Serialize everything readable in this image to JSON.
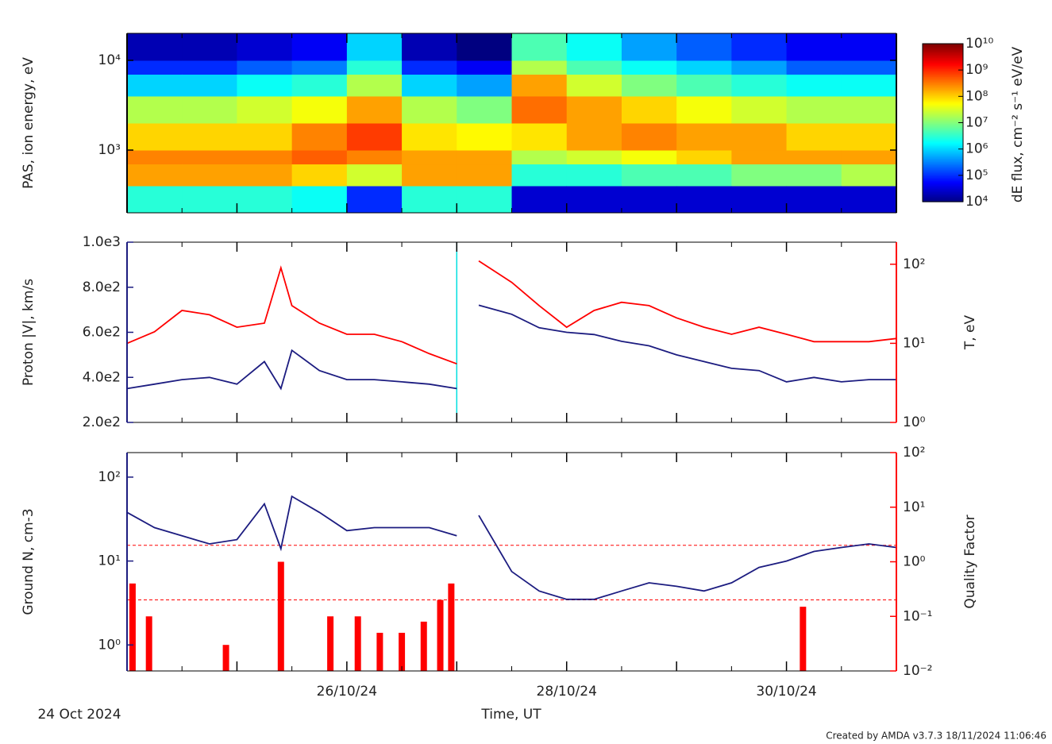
{
  "date_label": "24 Oct 2024",
  "x_label": "Time, UT",
  "credit": "Created by AMDA v3.7.3 18/11/2024 11:06:46",
  "chart_data": [
    {
      "type": "heatmap",
      "ylabel": "PAS, ion energy, eV",
      "xlim": [
        24,
        31
      ],
      "xticks": [
        25,
        26,
        27,
        28,
        29,
        30
      ],
      "xticks_minor": [
        24.5,
        25.5,
        26.5,
        27.5,
        28.5,
        29.5,
        30.5
      ],
      "ylim": [
        200,
        20000
      ],
      "ylog": true,
      "yticks": [
        {
          "value": 1000,
          "label": "10³"
        },
        {
          "value": 10000,
          "label": "10⁴"
        }
      ],
      "x_bins": [
        24,
        24.5,
        25,
        25.5,
        26,
        26.5,
        27,
        27.5,
        28,
        28.5,
        29,
        29.5,
        30,
        30.5,
        31
      ],
      "y_bins": [
        200,
        400,
        700,
        1000,
        2000,
        4000,
        7000,
        10000,
        20000
      ],
      "values": [
        [
          3000000.0,
          200000000.0,
          300000000.0,
          100000000.0,
          20000000.0,
          1000000.0,
          100000.0,
          20000.0
        ],
        [
          3000000.0,
          200000000.0,
          300000000.0,
          100000000.0,
          20000000.0,
          1000000.0,
          100000.0,
          20000.0
        ],
        [
          3000000.0,
          200000000.0,
          300000000.0,
          100000000.0,
          30000000.0,
          2000000.0,
          200000.0,
          30000.0
        ],
        [
          2000000.0,
          100000000.0,
          500000000.0,
          300000000.0,
          50000000.0,
          3000000.0,
          300000.0,
          50000.0
        ],
        [
          100000.0,
          30000000.0,
          300000000.0,
          800000000.0,
          200000000.0,
          20000000.0,
          3000000.0,
          1000000.0
        ],
        [
          3000000.0,
          200000000.0,
          200000000.0,
          80000000.0,
          20000000.0,
          1000000.0,
          100000.0,
          20000.0
        ],
        [
          3000000.0,
          200000000.0,
          200000000.0,
          60000000.0,
          10000000.0,
          500000.0,
          50000.0,
          10000.0
        ],
        [
          30000.0,
          3000000.0,
          20000000.0,
          80000000.0,
          400000000.0,
          200000000.0,
          20000000.0,
          5000000.0
        ],
        [
          30000.0,
          3000000.0,
          30000000.0,
          200000000.0,
          200000000.0,
          30000000.0,
          5000000.0,
          2000000.0
        ],
        [
          30000.0,
          5000000.0,
          50000000.0,
          300000000.0,
          100000000.0,
          10000000.0,
          2000000.0,
          500000.0
        ],
        [
          30000.0,
          5000000.0,
          100000000.0,
          200000000.0,
          50000000.0,
          5000000.0,
          1000000.0,
          200000.0
        ],
        [
          30000.0,
          10000000.0,
          200000000.0,
          200000000.0,
          30000000.0,
          3000000.0,
          500000.0,
          100000.0
        ],
        [
          30000.0,
          10000000.0,
          200000000.0,
          100000000.0,
          20000000.0,
          2000000.0,
          200000.0,
          50000.0
        ],
        [
          30000.0,
          20000000.0,
          200000000.0,
          100000000.0,
          20000000.0,
          2000000.0,
          200000.0,
          50000.0
        ]
      ],
      "colorbar": {
        "label": "dE flux, cm⁻² s⁻¹ eV/eV",
        "clim": [
          10000,
          10000000000
        ],
        "colormap": "jet",
        "ticks": [
          {
            "value": 10000,
            "label": "10⁴"
          },
          {
            "value": 100000,
            "label": "10⁵"
          },
          {
            "value": 1000000,
            "label": "10⁶"
          },
          {
            "value": 10000000,
            "label": "10⁷"
          },
          {
            "value": 100000000,
            "label": "10⁸"
          },
          {
            "value": 1000000000,
            "label": "10⁹"
          },
          {
            "value": 10000000000,
            "label": "10¹⁰"
          }
        ]
      }
    },
    {
      "type": "line",
      "ylabel": "Proton |V|, km/s",
      "y2label": "T, eV",
      "xlim": [
        24,
        31
      ],
      "xticks": [
        25,
        26,
        27,
        28,
        29,
        30
      ],
      "xticks_minor": [
        24.5,
        25.5,
        26.5,
        27.5,
        28.5,
        29.5,
        30.5
      ],
      "ylim": [
        200,
        1000
      ],
      "ycolor": "#1c1c80",
      "yticks": [
        {
          "value": 200,
          "label": "2.0e2"
        },
        {
          "value": 400,
          "label": "4.0e2"
        },
        {
          "value": 600,
          "label": "6.0e2"
        },
        {
          "value": 800,
          "label": "8.0e2"
        },
        {
          "value": 1000,
          "label": "1.0e3"
        }
      ],
      "y2lim": [
        1,
        190
      ],
      "y2log": true,
      "y2color": "#ff0000",
      "y2ticks": [
        {
          "value": 1,
          "label": "10⁰"
        },
        {
          "value": 10,
          "label": "10¹"
        },
        {
          "value": 100,
          "label": "10²"
        }
      ],
      "x": [
        24,
        24.25,
        24.5,
        24.75,
        25,
        25.25,
        25.4,
        25.5,
        25.75,
        26,
        26.25,
        26.5,
        26.75,
        27,
        27.1,
        27.2,
        27.5,
        27.75,
        28,
        28.25,
        28.5,
        28.75,
        29,
        29.25,
        29.5,
        29.75,
        30,
        30.25,
        30.5,
        30.75,
        31
      ],
      "series": [
        {
          "color": "#1c1c80",
          "values": [
            350,
            370,
            390,
            400,
            370,
            470,
            350,
            520,
            430,
            390,
            390,
            380,
            370,
            350,
            null,
            720,
            680,
            620,
            600,
            590,
            560,
            540,
            500,
            470,
            440,
            430,
            380,
            400,
            380,
            390,
            390
          ]
        },
        {
          "color": "#ff0000",
          "axis": "y2",
          "values": [
            10,
            14,
            26,
            23,
            16,
            18,
            90,
            30,
            18,
            13,
            13,
            10.5,
            7.4,
            5.5,
            null,
            110,
            59,
            30,
            16,
            26,
            33,
            30,
            21,
            16,
            13,
            16,
            13,
            10.5,
            10.5,
            10.5,
            11.5
          ]
        }
      ],
      "vline": {
        "x": 27,
        "color": "#00e0e0"
      }
    },
    {
      "type": "line",
      "ylabel": "Ground N, cm-3",
      "y2label": "Quality Factor",
      "xlim": [
        24,
        31
      ],
      "xticks_minor": [
        24.5,
        25.5,
        26.5,
        27.5,
        28.5,
        29.5,
        30.5
      ],
      "xticks": [
        25,
        {
          "value": 26,
          "label": "26/10/24"
        },
        27,
        {
          "value": 28,
          "label": "28/10/24"
        },
        29,
        {
          "value": 30,
          "label": "30/10/24"
        }
      ],
      "ylim": [
        0.49,
        196
      ],
      "ylog": true,
      "ycolor": "#1c1c80",
      "yticks": [
        {
          "value": 1,
          "label": "10⁰"
        },
        {
          "value": 10,
          "label": "10¹"
        },
        {
          "value": 100,
          "label": "10²"
        }
      ],
      "y2lim": [
        0.01,
        100
      ],
      "y2log": true,
      "y2color": "#ff0000",
      "y2ticks": [
        {
          "value": 0.01,
          "label": "10⁻²"
        },
        {
          "value": 0.1,
          "label": "10⁻¹"
        },
        {
          "value": 1,
          "label": "10⁰"
        },
        {
          "value": 10,
          "label": "10¹"
        },
        {
          "value": 100,
          "label": "10²"
        }
      ],
      "x": [
        24,
        24.25,
        24.5,
        24.75,
        25,
        25.25,
        25.4,
        25.5,
        25.75,
        26,
        26.25,
        26.5,
        26.75,
        27,
        27.1,
        27.2,
        27.5,
        27.75,
        28,
        28.25,
        28.5,
        28.75,
        29,
        29.25,
        29.5,
        29.75,
        30,
        30.25,
        30.5,
        30.75,
        31
      ],
      "series": [
        {
          "color": "#1c1c80",
          "values": [
            38,
            25,
            20,
            16,
            18,
            48,
            14,
            59,
            38,
            23,
            25,
            25,
            25,
            20,
            null,
            35,
            7.5,
            4.4,
            3.5,
            3.5,
            4.4,
            5.5,
            5,
            4.4,
            5.5,
            8.4,
            10,
            13,
            14.5,
            16,
            14.5
          ]
        },
        {
          "color": "#ff0000",
          "axis": "y2",
          "style": "spikes",
          "x": [
            24.05,
            24.2,
            24.9,
            25.4,
            25.85,
            26.1,
            26.3,
            26.5,
            26.7,
            26.85,
            26.95,
            30.15
          ],
          "values": [
            0.4,
            0.1,
            0.03,
            1.0,
            0.1,
            0.1,
            0.05,
            0.05,
            0.08,
            0.2,
            0.4,
            0.15
          ]
        }
      ],
      "hlines": [
        {
          "value": 2,
          "axis": "y2",
          "color": "#ff0000"
        },
        {
          "value": 0.2,
          "axis": "y2",
          "color": "#ff0000"
        }
      ]
    }
  ]
}
